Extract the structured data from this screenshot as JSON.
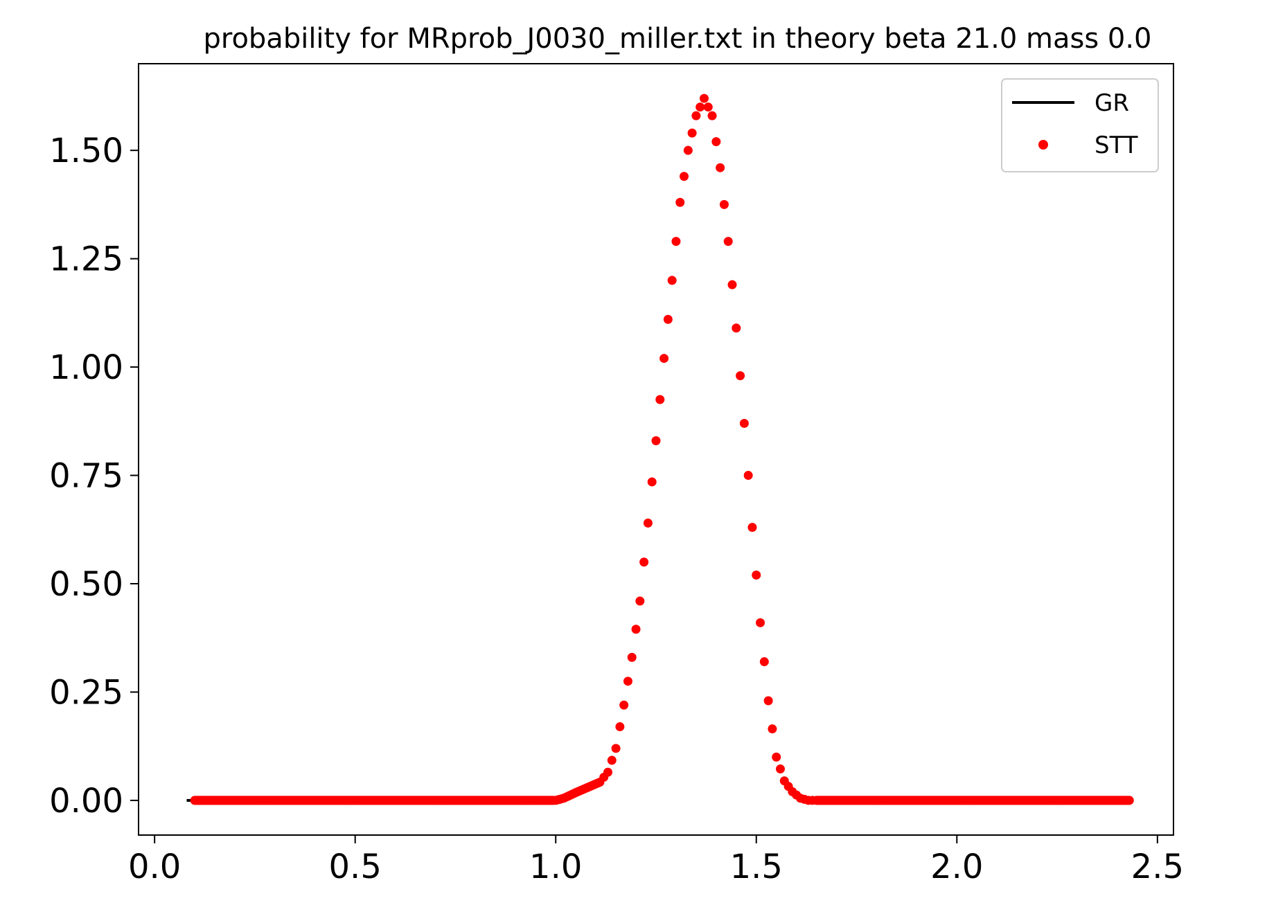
{
  "chart_data": {
    "type": "scatter",
    "title": "probability for MRprob_J0030_miller.txt in theory beta 21.0 mass 0.0",
    "xlabel": "",
    "ylabel": "",
    "xlim": [
      -0.04,
      2.54
    ],
    "ylim": [
      -0.08,
      1.7
    ],
    "x_ticks": [
      0.0,
      0.5,
      1.0,
      1.5,
      2.0,
      2.5
    ],
    "x_tick_labels": [
      "0.0",
      "0.5",
      "1.0",
      "1.5",
      "2.0",
      "2.5"
    ],
    "y_ticks": [
      0.0,
      0.25,
      0.5,
      0.75,
      1.0,
      1.25,
      1.5
    ],
    "y_tick_labels": [
      "0.00",
      "0.25",
      "0.50",
      "0.75",
      "1.00",
      "1.25",
      "1.50"
    ],
    "grid": false,
    "legend_position": "top-right",
    "series": [
      {
        "name": "GR",
        "style": "line",
        "color": "#000000",
        "x": [
          0.08,
          0.1
        ],
        "y": [
          0.0,
          0.0
        ]
      },
      {
        "name": "STT",
        "style": "points",
        "color": "#ff0000",
        "curve": {
          "x": [
            0.1,
            1.0,
            1.02,
            1.05,
            1.08,
            1.11,
            1.13,
            1.15,
            1.17,
            1.19,
            1.21,
            1.23,
            1.25,
            1.27,
            1.29,
            1.31,
            1.33,
            1.35,
            1.37,
            1.39,
            1.41,
            1.43,
            1.45,
            1.47,
            1.49,
            1.51,
            1.53,
            1.55,
            1.57,
            1.59,
            1.61,
            1.63,
            2.43
          ],
          "y": [
            0.0,
            0.0,
            0.005,
            0.018,
            0.03,
            0.042,
            0.065,
            0.12,
            0.22,
            0.33,
            0.46,
            0.64,
            0.83,
            1.02,
            1.2,
            1.38,
            1.5,
            1.58,
            1.62,
            1.58,
            1.46,
            1.29,
            1.09,
            0.87,
            0.63,
            0.41,
            0.23,
            0.1,
            0.045,
            0.02,
            0.005,
            0.0,
            0.0
          ]
        }
      }
    ]
  }
}
